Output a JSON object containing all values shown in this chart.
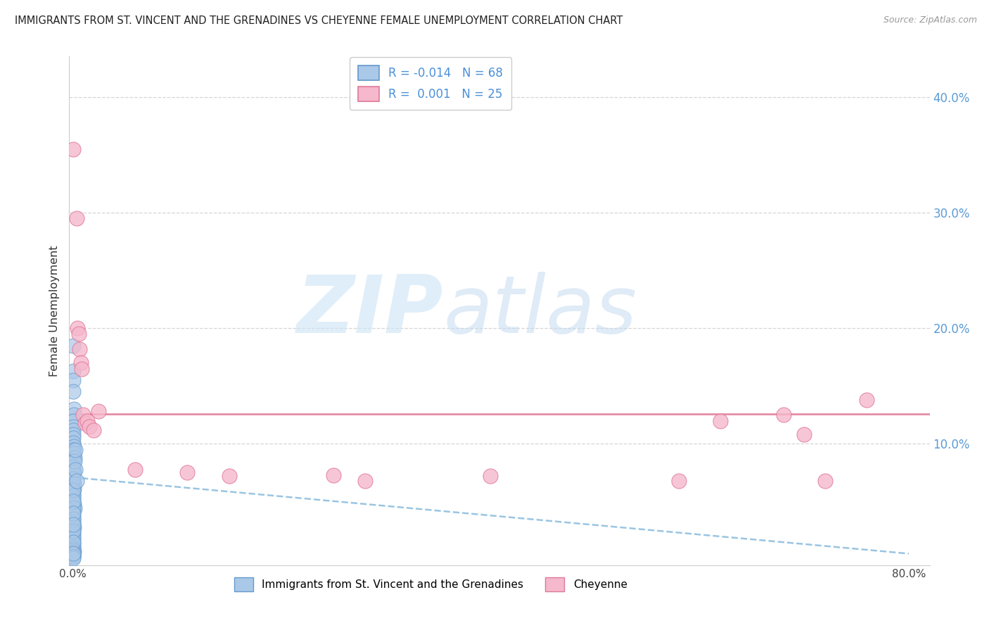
{
  "title": "IMMIGRANTS FROM ST. VINCENT AND THE GRENADINES VS CHEYENNE FEMALE UNEMPLOYMENT CORRELATION CHART",
  "source": "Source: ZipAtlas.com",
  "ylabel": "Female Unemployment",
  "xlim": [
    -0.003,
    0.82
  ],
  "ylim": [
    -0.005,
    0.435
  ],
  "color_blue_fill": "#aac8e8",
  "color_blue_edge": "#6699cc",
  "color_pink_fill": "#f5b8cc",
  "color_pink_edge": "#e07898",
  "color_trend_blue": "#88bbdd",
  "color_trend_pink": "#e07898",
  "ytick_color": "#5b9bd5",
  "r_blue": "-0.014",
  "n_blue": "68",
  "r_pink": "0.001",
  "n_pink": "25",
  "legend1_label": "Immigrants from St. Vincent and the Grenadines",
  "legend2_label": "Cheyenne",
  "ytick_positions": [
    0.0,
    0.1,
    0.2,
    0.3,
    0.4
  ],
  "ytick_labels": [
    "",
    "10.0%",
    "20.0%",
    "30.0%",
    "40.0%"
  ],
  "xtick_positions": [
    0.0,
    0.1,
    0.2,
    0.3,
    0.4,
    0.5,
    0.6,
    0.7,
    0.8
  ],
  "xtick_labels": [
    "0.0%",
    "",
    "",
    "",
    "",
    "",
    "",
    "",
    "80.0%"
  ],
  "blue_x": [
    0.0005,
    0.001,
    0.001,
    0.0008,
    0.0012,
    0.0015,
    0.001,
    0.001,
    0.001,
    0.001,
    0.0008,
    0.001,
    0.0012,
    0.001,
    0.0015,
    0.002,
    0.0008,
    0.001,
    0.0015,
    0.001,
    0.001,
    0.001,
    0.001,
    0.0012,
    0.0008,
    0.001,
    0.001,
    0.0015,
    0.002,
    0.001,
    0.001,
    0.001,
    0.001,
    0.0008,
    0.0015,
    0.001,
    0.001,
    0.001,
    0.001,
    0.001,
    0.001,
    0.001,
    0.001,
    0.001,
    0.0012,
    0.001,
    0.001,
    0.001,
    0.001,
    0.001,
    0.001,
    0.001,
    0.0015,
    0.001,
    0.001,
    0.001,
    0.001,
    0.001,
    0.001,
    0.001,
    0.001,
    0.001,
    0.001,
    0.001,
    0.002,
    0.003,
    0.003,
    0.004
  ],
  "blue_y": [
    0.185,
    0.163,
    0.155,
    0.145,
    0.13,
    0.125,
    0.12,
    0.115,
    0.112,
    0.108,
    0.105,
    0.101,
    0.098,
    0.095,
    0.092,
    0.088,
    0.085,
    0.08,
    0.076,
    0.073,
    0.07,
    0.067,
    0.064,
    0.061,
    0.058,
    0.055,
    0.052,
    0.048,
    0.044,
    0.041,
    0.038,
    0.035,
    0.032,
    0.03,
    0.028,
    0.025,
    0.022,
    0.02,
    0.018,
    0.015,
    0.013,
    0.011,
    0.009,
    0.008,
    0.007,
    0.006,
    0.005,
    0.004,
    0.003,
    0.002,
    0.001,
    0.075,
    0.065,
    0.055,
    0.045,
    0.035,
    0.025,
    0.015,
    0.005,
    0.07,
    0.06,
    0.05,
    0.04,
    0.03,
    0.085,
    0.095,
    0.078,
    0.068
  ],
  "pink_x": [
    0.001,
    0.004,
    0.005,
    0.006,
    0.007,
    0.008,
    0.009,
    0.01,
    0.012,
    0.014,
    0.016,
    0.02,
    0.025,
    0.06,
    0.11,
    0.15,
    0.25,
    0.28,
    0.4,
    0.58,
    0.62,
    0.68,
    0.7,
    0.72,
    0.76
  ],
  "pink_y": [
    0.355,
    0.295,
    0.2,
    0.195,
    0.182,
    0.17,
    0.165,
    0.125,
    0.118,
    0.12,
    0.115,
    0.112,
    0.128,
    0.078,
    0.075,
    0.072,
    0.073,
    0.068,
    0.072,
    0.068,
    0.12,
    0.125,
    0.108,
    0.068,
    0.138
  ],
  "blue_trend_x": [
    0.0,
    0.8
  ],
  "blue_trend_y": [
    0.071,
    0.005
  ],
  "pink_trend_y": 0.126
}
